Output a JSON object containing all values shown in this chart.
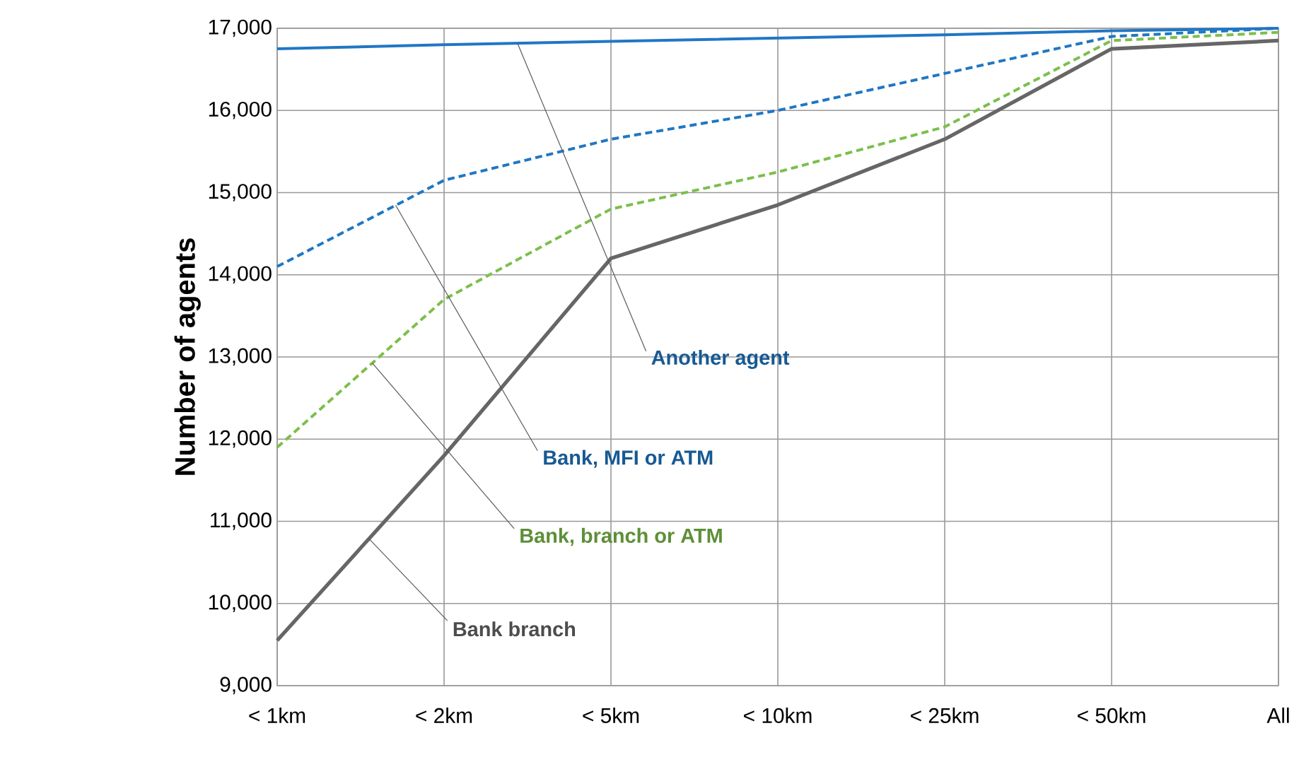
{
  "chart_data": {
    "type": "line",
    "ylabel": "Number of agents",
    "categories": [
      "< 1km",
      "< 2km",
      "< 5km",
      "< 10km",
      "< 25km",
      "< 50km",
      "All"
    ],
    "series": [
      {
        "name": "Another agent",
        "color": "#1f77c4",
        "line_style": "solid",
        "values": [
          16750,
          16800,
          16840,
          16880,
          16920,
          16970,
          17000
        ]
      },
      {
        "name": "Bank, MFI or ATM",
        "color": "#1f77c4",
        "line_style": "dashed",
        "values": [
          14100,
          15150,
          15650,
          16000,
          16450,
          16900,
          17000
        ]
      },
      {
        "name": "Bank, branch or ATM",
        "color": "#7cbf4a",
        "line_style": "dashed",
        "values": [
          11900,
          13700,
          14800,
          15250,
          15800,
          16850,
          16950
        ]
      },
      {
        "name": "Bank branch",
        "color": "#666666",
        "line_style": "solid",
        "values": [
          9550,
          11800,
          14200,
          14850,
          15650,
          16750,
          16850
        ]
      }
    ],
    "ylim": [
      9000,
      17000
    ],
    "yticks": [
      {
        "value": 9000,
        "label": "9,000"
      },
      {
        "value": 10000,
        "label": "10,000"
      },
      {
        "value": 11000,
        "label": "11,000"
      },
      {
        "value": 12000,
        "label": "12,000"
      },
      {
        "value": 13000,
        "label": "13,000"
      },
      {
        "value": 14000,
        "label": "14,000"
      },
      {
        "value": 15000,
        "label": "15,000"
      },
      {
        "value": 16000,
        "label": "16,000"
      },
      {
        "value": 17000,
        "label": "17,000"
      }
    ],
    "grid": true,
    "legend": false,
    "marker": "none"
  }
}
